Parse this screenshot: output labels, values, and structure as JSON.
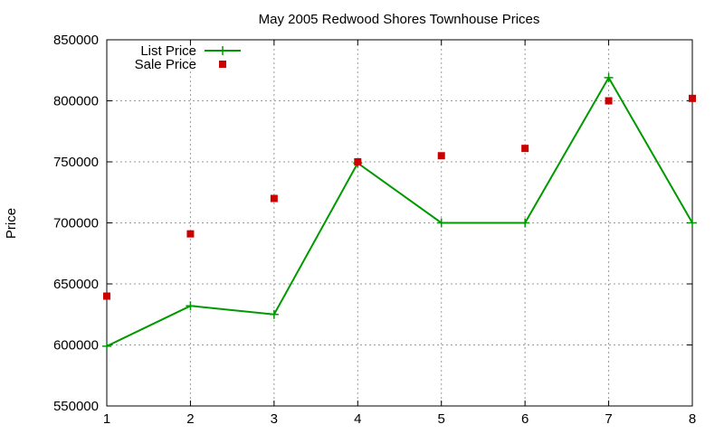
{
  "chart_data": {
    "type": "line",
    "title": "May 2005 Redwood Shores Townhouse Prices",
    "xlabel": "",
    "ylabel": "Price",
    "x": [
      1,
      2,
      3,
      4,
      5,
      6,
      7,
      8
    ],
    "xlim": [
      1,
      8
    ],
    "ylim": [
      550000,
      850000
    ],
    "xticks": [
      "1",
      "2",
      "3",
      "4",
      "5",
      "6",
      "7",
      "8"
    ],
    "yticks": [
      "550000",
      "600000",
      "650000",
      "700000",
      "750000",
      "800000",
      "850000"
    ],
    "grid": true,
    "legend_position": "top-left",
    "series": [
      {
        "name": "List Price",
        "style": "linespoints",
        "marker": "plus",
        "color": "#009900",
        "values": [
          599000,
          632000,
          625000,
          749000,
          700000,
          700000,
          819000,
          700000
        ]
      },
      {
        "name": "Sale Price",
        "style": "points",
        "marker": "square",
        "color": "#cc0000",
        "values": [
          640000,
          691000,
          720000,
          750000,
          755000,
          761000,
          800000,
          802000
        ]
      }
    ]
  }
}
